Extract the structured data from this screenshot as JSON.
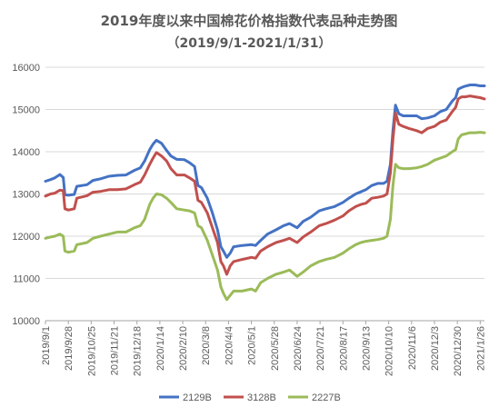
{
  "chart_data": {
    "type": "line",
    "title": "2019年度以来中国棉花价格指数代表品种走势图",
    "subtitle": "（2019/9/1-2021/1/31）",
    "xlabel": "",
    "ylabel": "",
    "ylim": [
      10000,
      16000
    ],
    "yticks": [
      10000,
      11000,
      12000,
      13000,
      14000,
      15000,
      16000
    ],
    "grid": true,
    "legend_position": "bottom",
    "x_start": "2019/9/1",
    "x_end": "2021/1/31",
    "x_tick_labels": [
      "2019/9/1",
      "2019/9/28",
      "2019/10/25",
      "2019/11/21",
      "2019/12/18",
      "2020/1/14",
      "2020/2/10",
      "2020/3/8",
      "2020/4/4",
      "2020/5/1",
      "2020/5/28",
      "2020/6/24",
      "2020/7/21",
      "2020/8/17",
      "2020/9/13",
      "2020/10/10",
      "2020/11/6",
      "2020/12/3",
      "2020/12/30",
      "2021/1/26"
    ],
    "series": [
      {
        "name": "2129B",
        "color": "#4472c4",
        "points": [
          [
            "2019-09-01",
            13300
          ],
          [
            "2019-09-07",
            13340
          ],
          [
            "2019-09-12",
            13380
          ],
          [
            "2019-09-18",
            13460
          ],
          [
            "2019-09-22",
            13390
          ],
          [
            "2019-09-24",
            12980
          ],
          [
            "2019-09-28",
            12970
          ],
          [
            "2019-10-05",
            12990
          ],
          [
            "2019-10-08",
            13180
          ],
          [
            "2019-10-20",
            13220
          ],
          [
            "2019-10-27",
            13320
          ],
          [
            "2019-11-05",
            13360
          ],
          [
            "2019-11-15",
            13420
          ],
          [
            "2019-11-25",
            13440
          ],
          [
            "2019-12-05",
            13450
          ],
          [
            "2019-12-15",
            13560
          ],
          [
            "2019-12-22",
            13620
          ],
          [
            "2019-12-27",
            13780
          ],
          [
            "2020-01-02",
            14050
          ],
          [
            "2020-01-06",
            14180
          ],
          [
            "2020-01-10",
            14270
          ],
          [
            "2020-01-16",
            14200
          ],
          [
            "2020-01-22",
            14030
          ],
          [
            "2020-01-27",
            13900
          ],
          [
            "2020-02-03",
            13820
          ],
          [
            "2020-02-12",
            13810
          ],
          [
            "2020-02-18",
            13740
          ],
          [
            "2020-02-24",
            13650
          ],
          [
            "2020-02-28",
            13200
          ],
          [
            "2020-03-03",
            13150
          ],
          [
            "2020-03-10",
            12900
          ],
          [
            "2020-03-16",
            12550
          ],
          [
            "2020-03-22",
            12150
          ],
          [
            "2020-03-26",
            11750
          ],
          [
            "2020-03-29",
            11650
          ],
          [
            "2020-04-02",
            11500
          ],
          [
            "2020-04-06",
            11600
          ],
          [
            "2020-04-10",
            11750
          ],
          [
            "2020-04-20",
            11780
          ],
          [
            "2020-05-01",
            11800
          ],
          [
            "2020-05-06",
            11780
          ],
          [
            "2020-05-12",
            11900
          ],
          [
            "2020-05-20",
            12050
          ],
          [
            "2020-05-30",
            12150
          ],
          [
            "2020-06-08",
            12250
          ],
          [
            "2020-06-15",
            12300
          ],
          [
            "2020-06-24",
            12200
          ],
          [
            "2020-07-01",
            12350
          ],
          [
            "2020-07-10",
            12450
          ],
          [
            "2020-07-20",
            12600
          ],
          [
            "2020-07-28",
            12650
          ],
          [
            "2020-08-07",
            12700
          ],
          [
            "2020-08-17",
            12800
          ],
          [
            "2020-08-24",
            12900
          ],
          [
            "2020-09-01",
            13000
          ],
          [
            "2020-09-07",
            13050
          ],
          [
            "2020-09-13",
            13100
          ],
          [
            "2020-09-20",
            13200
          ],
          [
            "2020-09-27",
            13250
          ],
          [
            "2020-10-04",
            13250
          ],
          [
            "2020-10-08",
            13300
          ],
          [
            "2020-10-12",
            13700
          ],
          [
            "2020-10-15",
            14500
          ],
          [
            "2020-10-18",
            15100
          ],
          [
            "2020-10-22",
            14900
          ],
          [
            "2020-10-27",
            14850
          ],
          [
            "2020-11-03",
            14850
          ],
          [
            "2020-11-12",
            14850
          ],
          [
            "2020-11-18",
            14780
          ],
          [
            "2020-11-25",
            14800
          ],
          [
            "2020-12-03",
            14850
          ],
          [
            "2020-12-10",
            14950
          ],
          [
            "2020-12-17",
            15000
          ],
          [
            "2020-12-24",
            15200
          ],
          [
            "2020-12-28",
            15280
          ],
          [
            "2020-12-31",
            15480
          ],
          [
            "2021-01-04",
            15520
          ],
          [
            "2021-01-08",
            15550
          ],
          [
            "2021-01-14",
            15580
          ],
          [
            "2021-01-20",
            15580
          ],
          [
            "2021-01-26",
            15560
          ],
          [
            "2021-01-31",
            15560
          ]
        ]
      },
      {
        "name": "3128B",
        "color": "#c0504d",
        "points": [
          [
            "2019-09-01",
            12950
          ],
          [
            "2019-09-07",
            13000
          ],
          [
            "2019-09-12",
            13020
          ],
          [
            "2019-09-18",
            13090
          ],
          [
            "2019-09-22",
            13080
          ],
          [
            "2019-09-24",
            12650
          ],
          [
            "2019-09-28",
            12620
          ],
          [
            "2019-10-05",
            12650
          ],
          [
            "2019-10-08",
            12900
          ],
          [
            "2019-10-20",
            12960
          ],
          [
            "2019-10-27",
            13040
          ],
          [
            "2019-11-05",
            13060
          ],
          [
            "2019-11-15",
            13100
          ],
          [
            "2019-11-25",
            13100
          ],
          [
            "2019-12-05",
            13120
          ],
          [
            "2019-12-15",
            13220
          ],
          [
            "2019-12-22",
            13280
          ],
          [
            "2019-12-27",
            13450
          ],
          [
            "2020-01-02",
            13700
          ],
          [
            "2020-01-06",
            13850
          ],
          [
            "2020-01-10",
            13980
          ],
          [
            "2020-01-16",
            13900
          ],
          [
            "2020-01-22",
            13780
          ],
          [
            "2020-01-27",
            13600
          ],
          [
            "2020-02-03",
            13450
          ],
          [
            "2020-02-12",
            13450
          ],
          [
            "2020-02-18",
            13380
          ],
          [
            "2020-02-24",
            13300
          ],
          [
            "2020-02-28",
            12850
          ],
          [
            "2020-03-03",
            12800
          ],
          [
            "2020-03-10",
            12550
          ],
          [
            "2020-03-16",
            12200
          ],
          [
            "2020-03-22",
            11850
          ],
          [
            "2020-03-26",
            11400
          ],
          [
            "2020-03-29",
            11300
          ],
          [
            "2020-04-02",
            11100
          ],
          [
            "2020-04-06",
            11300
          ],
          [
            "2020-04-10",
            11400
          ],
          [
            "2020-04-20",
            11450
          ],
          [
            "2020-05-01",
            11500
          ],
          [
            "2020-05-06",
            11480
          ],
          [
            "2020-05-12",
            11650
          ],
          [
            "2020-05-20",
            11750
          ],
          [
            "2020-05-30",
            11850
          ],
          [
            "2020-06-08",
            11900
          ],
          [
            "2020-06-15",
            11950
          ],
          [
            "2020-06-24",
            11850
          ],
          [
            "2020-07-01",
            11980
          ],
          [
            "2020-07-10",
            12100
          ],
          [
            "2020-07-20",
            12250
          ],
          [
            "2020-07-28",
            12300
          ],
          [
            "2020-08-07",
            12380
          ],
          [
            "2020-08-17",
            12480
          ],
          [
            "2020-08-24",
            12600
          ],
          [
            "2020-09-01",
            12700
          ],
          [
            "2020-09-07",
            12750
          ],
          [
            "2020-09-13",
            12780
          ],
          [
            "2020-09-20",
            12900
          ],
          [
            "2020-09-27",
            12920
          ],
          [
            "2020-10-04",
            12950
          ],
          [
            "2020-10-08",
            13000
          ],
          [
            "2020-10-12",
            13500
          ],
          [
            "2020-10-15",
            14300
          ],
          [
            "2020-10-18",
            14920
          ],
          [
            "2020-10-22",
            14650
          ],
          [
            "2020-10-27",
            14600
          ],
          [
            "2020-11-03",
            14550
          ],
          [
            "2020-11-12",
            14500
          ],
          [
            "2020-11-18",
            14450
          ],
          [
            "2020-11-25",
            14550
          ],
          [
            "2020-12-03",
            14600
          ],
          [
            "2020-12-10",
            14700
          ],
          [
            "2020-12-17",
            14750
          ],
          [
            "2020-12-24",
            14950
          ],
          [
            "2020-12-28",
            15050
          ],
          [
            "2020-12-31",
            15250
          ],
          [
            "2021-01-04",
            15300
          ],
          [
            "2021-01-08",
            15300
          ],
          [
            "2021-01-14",
            15320
          ],
          [
            "2021-01-20",
            15300
          ],
          [
            "2021-01-26",
            15280
          ],
          [
            "2021-01-31",
            15250
          ]
        ]
      },
      {
        "name": "2227B",
        "color": "#9bbb59",
        "points": [
          [
            "2019-09-01",
            11950
          ],
          [
            "2019-09-07",
            11980
          ],
          [
            "2019-09-12",
            12000
          ],
          [
            "2019-09-18",
            12050
          ],
          [
            "2019-09-22",
            12000
          ],
          [
            "2019-09-24",
            11650
          ],
          [
            "2019-09-28",
            11620
          ],
          [
            "2019-10-05",
            11650
          ],
          [
            "2019-10-08",
            11800
          ],
          [
            "2019-10-20",
            11850
          ],
          [
            "2019-10-27",
            11950
          ],
          [
            "2019-11-05",
            12000
          ],
          [
            "2019-11-15",
            12050
          ],
          [
            "2019-11-25",
            12100
          ],
          [
            "2019-12-05",
            12100
          ],
          [
            "2019-12-15",
            12200
          ],
          [
            "2019-12-22",
            12250
          ],
          [
            "2019-12-27",
            12400
          ],
          [
            "2020-01-02",
            12750
          ],
          [
            "2020-01-06",
            12900
          ],
          [
            "2020-01-10",
            13000
          ],
          [
            "2020-01-16",
            12980
          ],
          [
            "2020-01-22",
            12900
          ],
          [
            "2020-01-27",
            12800
          ],
          [
            "2020-02-03",
            12650
          ],
          [
            "2020-02-12",
            12620
          ],
          [
            "2020-02-18",
            12600
          ],
          [
            "2020-02-24",
            12550
          ],
          [
            "2020-02-28",
            12250
          ],
          [
            "2020-03-03",
            12200
          ],
          [
            "2020-03-10",
            11900
          ],
          [
            "2020-03-16",
            11550
          ],
          [
            "2020-03-22",
            11200
          ],
          [
            "2020-03-26",
            10800
          ],
          [
            "2020-03-29",
            10650
          ],
          [
            "2020-04-02",
            10500
          ],
          [
            "2020-04-06",
            10600
          ],
          [
            "2020-04-10",
            10700
          ],
          [
            "2020-04-20",
            10700
          ],
          [
            "2020-05-01",
            10750
          ],
          [
            "2020-05-06",
            10700
          ],
          [
            "2020-05-12",
            10900
          ],
          [
            "2020-05-20",
            11000
          ],
          [
            "2020-05-30",
            11100
          ],
          [
            "2020-06-08",
            11150
          ],
          [
            "2020-06-15",
            11200
          ],
          [
            "2020-06-24",
            11050
          ],
          [
            "2020-07-01",
            11150
          ],
          [
            "2020-07-10",
            11300
          ],
          [
            "2020-07-20",
            11400
          ],
          [
            "2020-07-28",
            11450
          ],
          [
            "2020-08-07",
            11500
          ],
          [
            "2020-08-17",
            11600
          ],
          [
            "2020-08-24",
            11700
          ],
          [
            "2020-09-01",
            11800
          ],
          [
            "2020-09-07",
            11850
          ],
          [
            "2020-09-13",
            11880
          ],
          [
            "2020-09-20",
            11900
          ],
          [
            "2020-09-27",
            11920
          ],
          [
            "2020-10-04",
            11950
          ],
          [
            "2020-10-08",
            12000
          ],
          [
            "2020-10-12",
            12400
          ],
          [
            "2020-10-15",
            13200
          ],
          [
            "2020-10-18",
            13700
          ],
          [
            "2020-10-22",
            13620
          ],
          [
            "2020-10-27",
            13600
          ],
          [
            "2020-11-03",
            13600
          ],
          [
            "2020-11-12",
            13620
          ],
          [
            "2020-11-18",
            13650
          ],
          [
            "2020-11-25",
            13700
          ],
          [
            "2020-12-03",
            13800
          ],
          [
            "2020-12-10",
            13850
          ],
          [
            "2020-12-17",
            13900
          ],
          [
            "2020-12-24",
            14000
          ],
          [
            "2020-12-28",
            14050
          ],
          [
            "2020-12-31",
            14300
          ],
          [
            "2021-01-04",
            14400
          ],
          [
            "2021-01-08",
            14420
          ],
          [
            "2021-01-14",
            14450
          ],
          [
            "2021-01-20",
            14450
          ],
          [
            "2021-01-26",
            14460
          ],
          [
            "2021-01-31",
            14450
          ]
        ]
      }
    ]
  }
}
